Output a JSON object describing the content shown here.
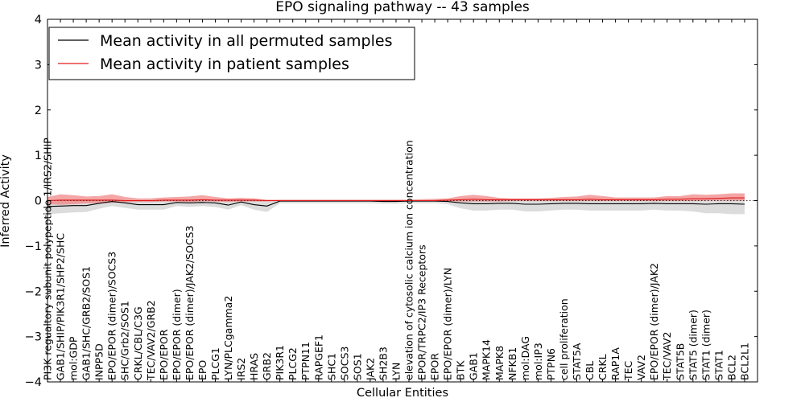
{
  "chart_data": {
    "type": "line",
    "title": "EPO signaling pathway -- 43 samples",
    "xlabel": "Cellular Entities",
    "ylabel": "Inferred Activity",
    "ylim": [
      -4,
      4
    ],
    "yticks": [
      -4,
      -3,
      -2,
      -1,
      0,
      1,
      2,
      3,
      4
    ],
    "ytick_labels": [
      "−4",
      "−3",
      "−2",
      "−1",
      "0",
      "1",
      "2",
      "3",
      "4"
    ],
    "grid": false,
    "legend_position": "top-left",
    "colors": {
      "permuted_line": "#000000",
      "patient_line": "#e31a1c",
      "permuted_band": "#bfbfbf",
      "patient_band": "#f08080"
    },
    "categories": [
      "PI3K regualtory subunit polypeptide 1/IRS2/SHIP",
      "GAB1/SHIP/PIK3R1/SHP2/SHC",
      "mol:GDP",
      "GAB1/SHC/GRB2/SOS1",
      "INPP5D",
      "EPO/EPOR (dimer)/SOCS3",
      "SHC/Grb2/SOS1",
      "CRKL/CBL/C3G",
      "TEC/VAV2/GRB2",
      "EPO/EPOR",
      "EPO/EPOR (dimer)",
      "EPO/EPOR (dimer)/JAK2/SOCS3",
      "EPO",
      "PLCG1",
      "LYN/PLCgamma2",
      "IRS2",
      "HRAS",
      "GRB2",
      "PIK3R1",
      "PLCG2",
      "PTPN11",
      "RAPGEF1",
      "SHC1",
      "SOCS3",
      "SOS1",
      "JAK2",
      "SH2B3",
      "LYN",
      "elevation of cytosolic calcium ion concentration",
      "EPOR/TRPC2/IP3 Receptors",
      "EPOR",
      "EPO/EPOR (dimer)/LYN",
      "BTK",
      "GAB1",
      "MAPK14",
      "MAPK8",
      "NFKB1",
      "mol:DAG",
      "mol:IP3",
      "PTPN6",
      "cell proliferation",
      "STAT5A",
      "CBL",
      "CRKL",
      "RAP1A",
      "TEC",
      "VAV2",
      "EPO/EPOR (dimer)/JAK2",
      "TEC/VAV2",
      "STAT5B",
      "STAT5 (dimer)",
      "STAT1 (dimer)",
      "STAT1",
      "BCL2",
      "BCL2L1"
    ],
    "series": [
      {
        "name": "Mean activity in all permuted samples",
        "values": [
          -0.13,
          -0.12,
          -0.11,
          -0.11,
          -0.06,
          -0.02,
          -0.05,
          -0.09,
          -0.09,
          -0.09,
          -0.04,
          -0.05,
          -0.04,
          -0.05,
          -0.1,
          -0.03,
          -0.09,
          -0.12,
          -0.01,
          -0.01,
          -0.01,
          -0.01,
          -0.01,
          -0.01,
          -0.01,
          -0.01,
          -0.02,
          -0.02,
          -0.01,
          -0.01,
          -0.01,
          -0.02,
          -0.05,
          -0.07,
          -0.07,
          -0.06,
          -0.06,
          -0.08,
          -0.08,
          -0.07,
          -0.06,
          -0.06,
          -0.07,
          -0.07,
          -0.07,
          -0.07,
          -0.07,
          -0.06,
          -0.07,
          -0.07,
          -0.07,
          -0.08,
          -0.07,
          -0.07,
          -0.08
        ],
        "lower": [
          -0.3,
          -0.28,
          -0.26,
          -0.25,
          -0.18,
          -0.12,
          -0.16,
          -0.2,
          -0.2,
          -0.2,
          -0.12,
          -0.14,
          -0.12,
          -0.14,
          -0.2,
          -0.1,
          -0.2,
          -0.25,
          -0.06,
          -0.06,
          -0.06,
          -0.06,
          -0.06,
          -0.06,
          -0.06,
          -0.06,
          -0.07,
          -0.07,
          -0.06,
          -0.06,
          -0.06,
          -0.08,
          -0.17,
          -0.22,
          -0.22,
          -0.2,
          -0.2,
          -0.24,
          -0.24,
          -0.22,
          -0.2,
          -0.2,
          -0.22,
          -0.22,
          -0.22,
          -0.22,
          -0.22,
          -0.2,
          -0.22,
          -0.22,
          -0.24,
          -0.28,
          -0.28,
          -0.3,
          -0.3
        ],
        "upper": [
          0.02,
          0.02,
          0.02,
          0.02,
          0.02,
          0.03,
          0.02,
          0.01,
          0.01,
          0.01,
          0.02,
          0.02,
          0.02,
          0.02,
          0.0,
          0.03,
          0.01,
          0.0,
          0.02,
          0.02,
          0.02,
          0.02,
          0.02,
          0.02,
          0.02,
          0.02,
          0.02,
          0.02,
          0.02,
          0.02,
          0.02,
          0.02,
          0.03,
          0.04,
          0.04,
          0.04,
          0.04,
          0.04,
          0.04,
          0.04,
          0.04,
          0.04,
          0.04,
          0.04,
          0.04,
          0.04,
          0.04,
          0.04,
          0.04,
          0.04,
          0.05,
          0.06,
          0.06,
          0.07,
          0.07
        ]
      },
      {
        "name": "Mean activity in patient samples",
        "values": [
          0.0,
          0.01,
          0.01,
          0.01,
          0.01,
          0.01,
          0.0,
          0.0,
          0.0,
          0.01,
          0.01,
          0.01,
          0.02,
          0.01,
          0.01,
          0.01,
          0.01,
          0.0,
          0.0,
          0.0,
          0.0,
          0.0,
          0.0,
          0.0,
          0.0,
          0.0,
          0.0,
          0.0,
          0.0,
          0.0,
          0.0,
          0.01,
          0.02,
          0.03,
          0.02,
          0.02,
          0.02,
          0.02,
          0.02,
          0.02,
          0.02,
          0.02,
          0.03,
          0.02,
          0.02,
          0.02,
          0.02,
          0.02,
          0.03,
          0.03,
          0.04,
          0.04,
          0.05,
          0.06,
          0.06
        ],
        "lower": [
          -0.08,
          -0.09,
          -0.08,
          -0.06,
          -0.06,
          -0.05,
          -0.04,
          -0.03,
          -0.03,
          -0.02,
          -0.02,
          -0.03,
          -0.02,
          -0.02,
          -0.03,
          -0.02,
          -0.02,
          -0.02,
          -0.01,
          -0.01,
          -0.01,
          -0.01,
          -0.01,
          -0.01,
          -0.01,
          -0.01,
          -0.01,
          -0.01,
          -0.01,
          -0.01,
          -0.01,
          -0.01,
          -0.02,
          -0.02,
          -0.02,
          -0.02,
          -0.01,
          -0.01,
          -0.01,
          -0.01,
          -0.01,
          -0.01,
          -0.01,
          -0.01,
          -0.01,
          -0.01,
          -0.01,
          -0.01,
          -0.01,
          -0.01,
          -0.01,
          0.0,
          0.0,
          0.0,
          0.0
        ],
        "upper": [
          0.08,
          0.14,
          0.12,
          0.09,
          0.1,
          0.14,
          0.08,
          0.05,
          0.05,
          0.07,
          0.08,
          0.09,
          0.12,
          0.08,
          0.05,
          0.06,
          0.05,
          0.02,
          0.02,
          0.02,
          0.02,
          0.02,
          0.02,
          0.02,
          0.02,
          0.02,
          0.02,
          0.02,
          0.02,
          0.03,
          0.04,
          0.05,
          0.1,
          0.13,
          0.1,
          0.06,
          0.05,
          0.05,
          0.05,
          0.06,
          0.08,
          0.09,
          0.13,
          0.1,
          0.07,
          0.07,
          0.07,
          0.07,
          0.1,
          0.1,
          0.14,
          0.13,
          0.14,
          0.16,
          0.16
        ]
      }
    ]
  }
}
